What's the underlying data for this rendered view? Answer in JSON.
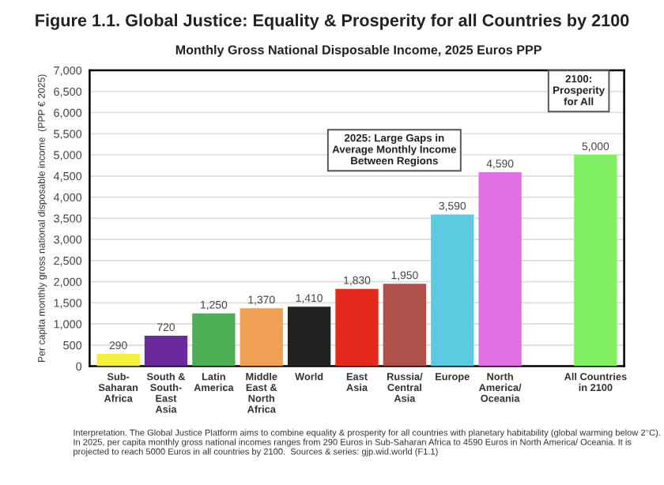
{
  "chart_data": {
    "type": "bar",
    "title": "Figure 1.1. Global Justice: Equality & Prosperity for all Countries by 2100",
    "subtitle": "Monthly Gross National Disposable Income, 2025 Euros PPP",
    "ylabel": "Per capita monthly gross national disposable income  (PPP € 2025)",
    "categories": [
      "Sub-\nSaharan\nAfrica",
      "South &\nSouth-\nEast\nAsia",
      "Latin\nAmerica",
      "Middle\nEast &\nNorth\nAfrica",
      "World",
      "East\nAsia",
      "Russia/\nCentral\nAsia",
      "Europe",
      "North\nAmerica/\nOceania",
      null,
      "All Countries\nin 2100"
    ],
    "values": [
      290,
      720,
      1250,
      1370,
      1410,
      1830,
      1950,
      3590,
      4590,
      null,
      5000
    ],
    "colors": [
      "#f4f03c",
      "#6a2a9c",
      "#4caf55",
      "#f0a055",
      "#222222",
      "#e42a1e",
      "#b0504a",
      "#5ccbe2",
      "#e070e4",
      "#ffffff",
      "#80f060"
    ],
    "ylim": [
      0,
      7000
    ],
    "yticks": [
      {
        "value": 0,
        "label": "0"
      },
      {
        "value": 500,
        "label": "500"
      },
      {
        "value": 1000,
        "label": "1,000"
      },
      {
        "value": 1500,
        "label": "1,500"
      },
      {
        "value": 2000,
        "label": "2,000"
      },
      {
        "value": 2500,
        "label": "2,500"
      },
      {
        "value": 3000,
        "label": "3,000"
      },
      {
        "value": 3500,
        "label": "3,500"
      },
      {
        "value": 4000,
        "label": "4,000"
      },
      {
        "value": 4500,
        "label": "4,500"
      },
      {
        "value": 5000,
        "label": "5,000"
      },
      {
        "value": 5500,
        "label": "5,500"
      },
      {
        "value": 6000,
        "label": "6,000"
      },
      {
        "value": 6500,
        "label": "6,500"
      },
      {
        "value": 7000,
        "label": "7,000"
      }
    ],
    "value_labels": [
      "290",
      "720",
      "1,250",
      "1,370",
      "1,410",
      "1,830",
      "1,950",
      "3,590",
      "4,590",
      null,
      "5,000"
    ],
    "grid": "y",
    "annotations": [
      "2025: Large Gaps in\nAverage Monthly Income\nBetween Regions",
      "2100:\nProsperity\nfor All",
      "Interpretation. The Global Justice Platform aims to combine equality & prosperity for all countries with planetary habitability (global warming below 2°C). In 2025, per capita monthly gross national incomes ranges from 290 Euros in Sub-Saharan Africa to 4590 Euros in North America/ Oceania. It is projected to reach 5000 Euros in all countries by 2100.  Sources & series: gjp.wid.world (F1.1)"
    ]
  }
}
